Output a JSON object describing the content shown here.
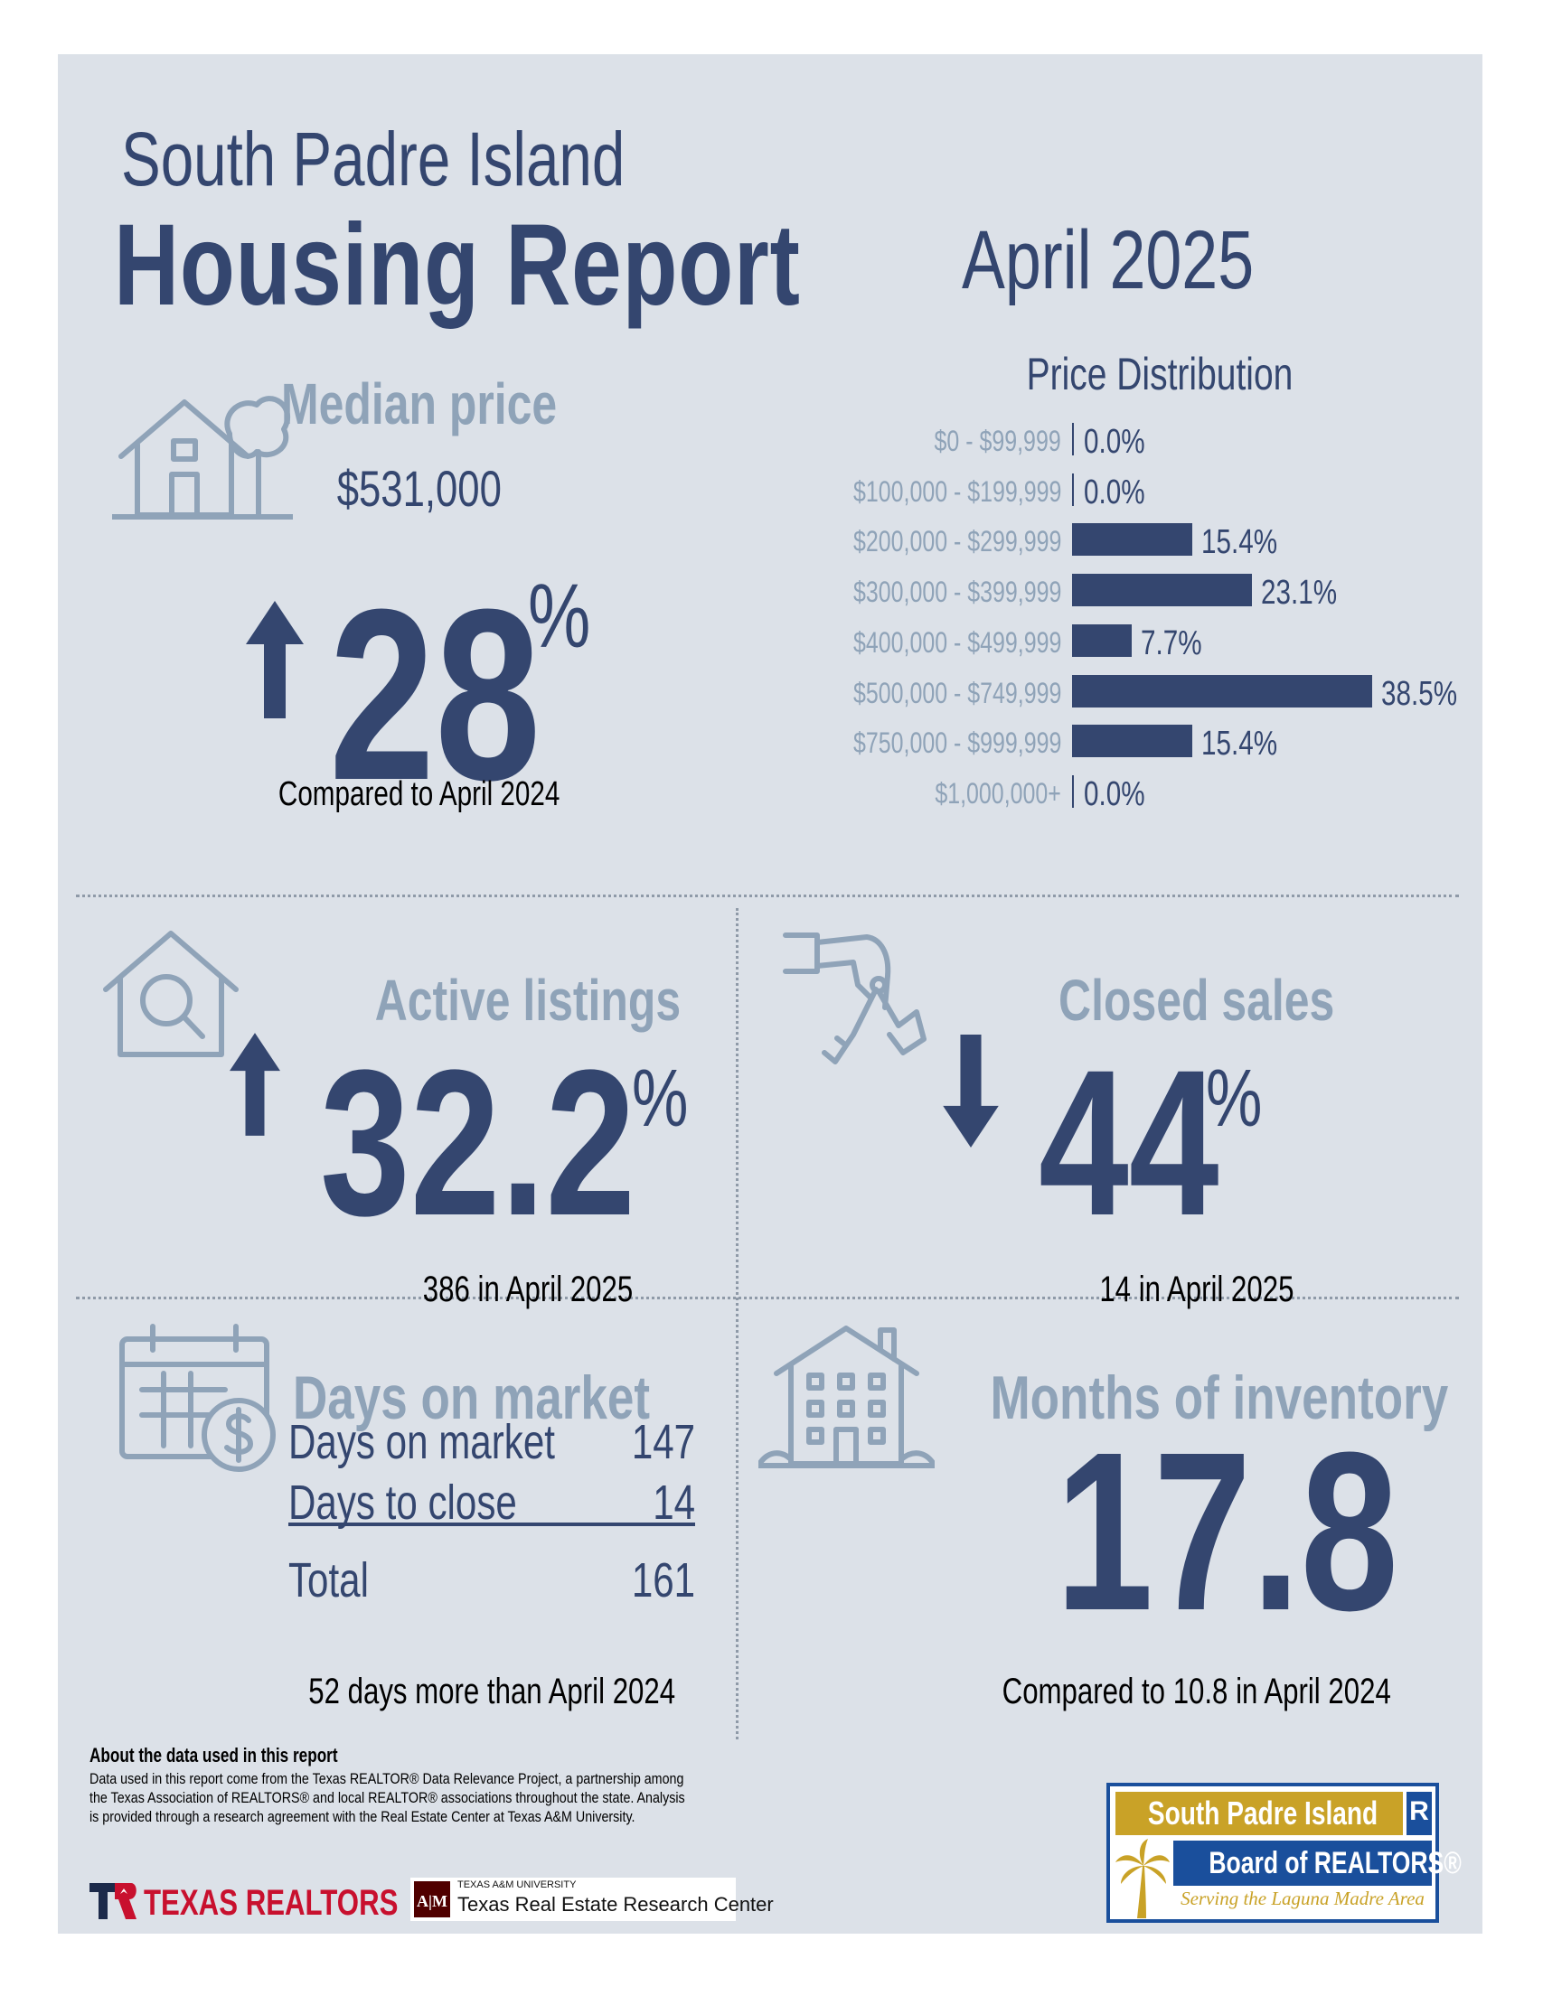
{
  "header": {
    "title_line1": "South Padre Island",
    "title_line2": "Housing Report",
    "month": "April 2025"
  },
  "median": {
    "label": "Median price",
    "value": "$531,000",
    "change": "28",
    "change_unit": "%",
    "direction": "up",
    "comparison": "Compared to April 2024"
  },
  "price_distribution": {
    "title": "Price Distribution"
  },
  "chart_data": {
    "type": "bar",
    "orientation": "horizontal",
    "title": "Price Distribution",
    "categories": [
      "$0 - $99,999",
      "$100,000 - $199,999",
      "$200,000 - $299,999",
      "$300,000 - $399,999",
      "$400,000 - $499,999",
      "$500,000 - $749,999",
      "$750,000 - $999,999",
      "$1,000,000+"
    ],
    "values": [
      0.0,
      0.0,
      15.4,
      23.1,
      7.7,
      38.5,
      15.4,
      0.0
    ],
    "value_labels": [
      "0.0%",
      "0.0%",
      "15.4%",
      "23.1%",
      "7.7%",
      "38.5%",
      "15.4%",
      "0.0%"
    ],
    "xlim": [
      0,
      40
    ],
    "grid": false,
    "bar_color": "#34466f"
  },
  "active_listings": {
    "label": "Active listings",
    "change": "32.2",
    "change_unit": "%",
    "direction": "up",
    "detail": "386 in April 2025"
  },
  "closed_sales": {
    "label": "Closed sales",
    "change": "44",
    "change_unit": "%",
    "direction": "down",
    "detail": "14 in April 2025"
  },
  "days_on_market": {
    "label": "Days on market",
    "rows": [
      {
        "label": "Days on market",
        "value": "147"
      },
      {
        "label": "Days to close",
        "value": "14"
      }
    ],
    "total_label": "Total",
    "total_value": "161",
    "comparison": "52 days more than April 2024"
  },
  "months_inventory": {
    "label": "Months of inventory",
    "value": "17.8",
    "comparison": "Compared to 10.8 in April 2024"
  },
  "about": {
    "title": "About the data used in this report",
    "body": "Data used in this report come from the Texas REALTOR® Data Relevance Project, a partnership among the Texas Association of REALTORS® and local REALTOR® associations throughout the state. Analysis is provided through a research agreement with the Real Estate Center at Texas A&M University."
  },
  "logos": {
    "texas_realtors": "TEXAS REALTORS",
    "tamu_small": "TEXAS A&M UNIVERSITY",
    "tamu_name": "Texas Real Estate Research Center",
    "board_line1": "South Padre Island",
    "board_line2": "Board of REALTORS®",
    "board_tagline": "Serving the Laguna Madre Area"
  },
  "colors": {
    "navy": "#34466f",
    "muted": "#8fa3b8",
    "panel": "#dce1e8",
    "gold": "#c9a227",
    "blue": "#1a4f9c"
  },
  "icons": [
    "house-tree-icon",
    "house-search-icon",
    "hand-keys-icon",
    "calendar-dollar-icon",
    "apartment-building-icon",
    "arrow-up-icon",
    "arrow-down-icon"
  ]
}
